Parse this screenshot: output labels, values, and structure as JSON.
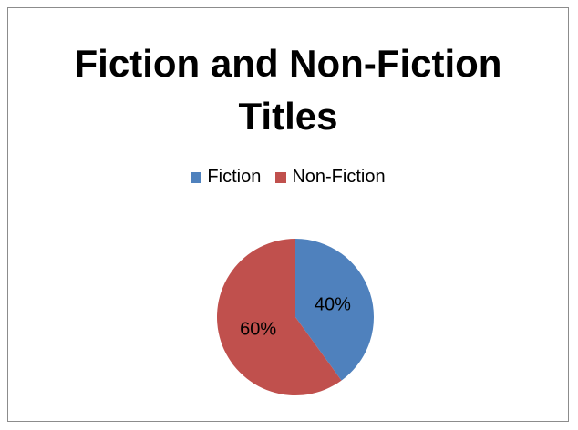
{
  "chart_data": {
    "type": "pie",
    "title_lines": [
      "Fiction and Non-Fiction",
      "Titles"
    ],
    "categories": [
      "Fiction",
      "Non-Fiction"
    ],
    "values": [
      40,
      60
    ],
    "data_labels": [
      "40%",
      "60%"
    ],
    "colors": [
      "#4f81bd",
      "#c0504d"
    ],
    "legend_position": "top",
    "start_angle_deg": 0,
    "direction": "clockwise"
  }
}
